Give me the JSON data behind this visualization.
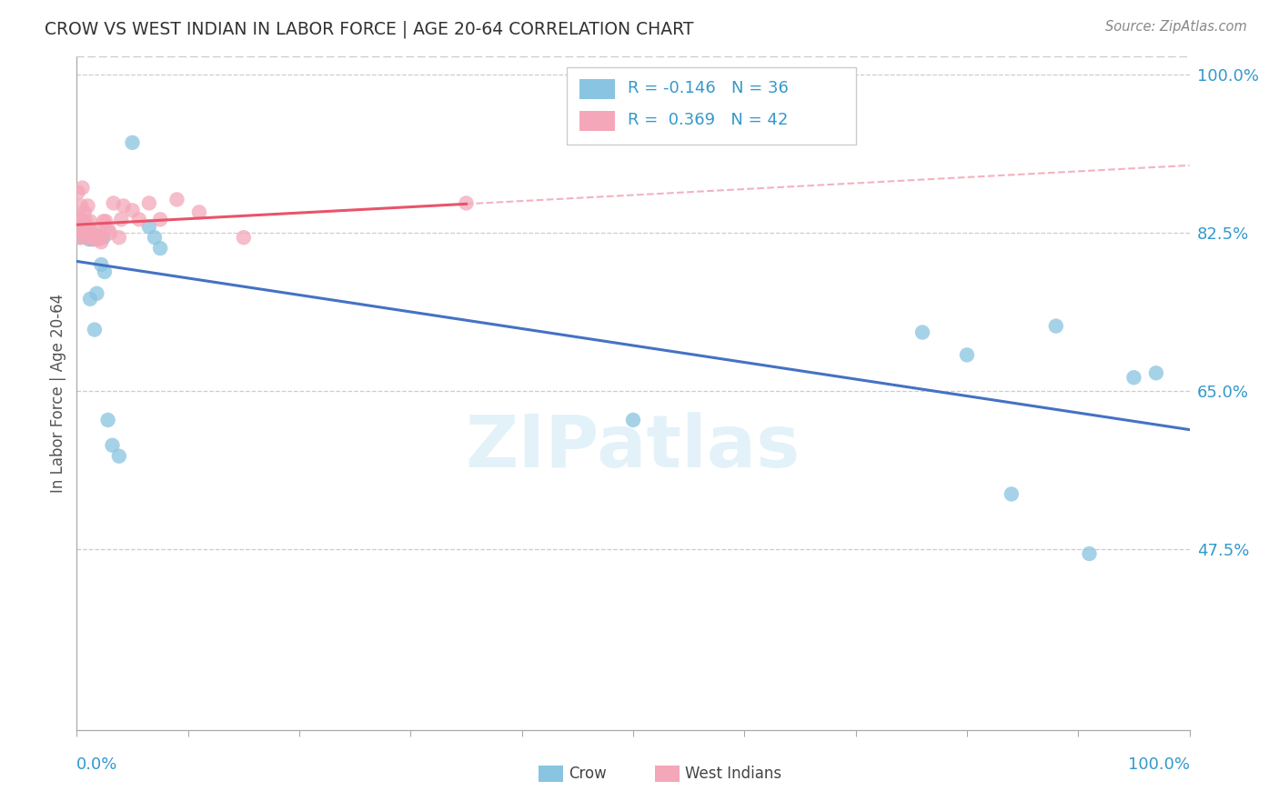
{
  "title": "CROW VS WEST INDIAN IN LABOR FORCE | AGE 20-64 CORRELATION CHART",
  "source": "Source: ZipAtlas.com",
  "ylabel": "In Labor Force | Age 20-64",
  "crow_R": -0.146,
  "crow_N": 36,
  "wi_R": 0.369,
  "wi_N": 42,
  "crow_color": "#89c4e1",
  "wi_color": "#f4a7b9",
  "crow_line_color": "#4472c4",
  "wi_line_color": "#e8546a",
  "wi_dash_color": "#f0a0b0",
  "watermark": "ZIPatlas",
  "crow_x": [
    0.003,
    0.004,
    0.005,
    0.006,
    0.007,
    0.008,
    0.009,
    0.01,
    0.011,
    0.012,
    0.013,
    0.014,
    0.015,
    0.016,
    0.017,
    0.018,
    0.019,
    0.02,
    0.022,
    0.024,
    0.025,
    0.028,
    0.032,
    0.038,
    0.05,
    0.065,
    0.07,
    0.075,
    0.5,
    0.76,
    0.8,
    0.84,
    0.88,
    0.91,
    0.95,
    0.97
  ],
  "crow_y": [
    0.82,
    0.825,
    0.825,
    0.832,
    0.828,
    0.822,
    0.825,
    0.828,
    0.818,
    0.752,
    0.82,
    0.818,
    0.82,
    0.718,
    0.82,
    0.758,
    0.82,
    0.822,
    0.79,
    0.82,
    0.782,
    0.618,
    0.59,
    0.578,
    0.925,
    0.832,
    0.82,
    0.808,
    0.618,
    0.715,
    0.69,
    0.536,
    0.722,
    0.47,
    0.665,
    0.67
  ],
  "wi_x": [
    0.001,
    0.002,
    0.003,
    0.004,
    0.004,
    0.005,
    0.005,
    0.006,
    0.007,
    0.007,
    0.008,
    0.008,
    0.009,
    0.01,
    0.01,
    0.011,
    0.012,
    0.013,
    0.014,
    0.015,
    0.016,
    0.017,
    0.018,
    0.02,
    0.021,
    0.022,
    0.024,
    0.026,
    0.028,
    0.03,
    0.033,
    0.038,
    0.04,
    0.042,
    0.05,
    0.056,
    0.065,
    0.075,
    0.09,
    0.11,
    0.15,
    0.35
  ],
  "wi_y": [
    0.87,
    0.828,
    0.82,
    0.855,
    0.84,
    0.838,
    0.875,
    0.825,
    0.832,
    0.848,
    0.82,
    0.838,
    0.832,
    0.825,
    0.855,
    0.83,
    0.838,
    0.82,
    0.825,
    0.82,
    0.818,
    0.82,
    0.825,
    0.818,
    0.82,
    0.815,
    0.838,
    0.838,
    0.83,
    0.825,
    0.858,
    0.82,
    0.84,
    0.855,
    0.85,
    0.84,
    0.858,
    0.84,
    0.862,
    0.848,
    0.82,
    0.858
  ],
  "xmin": 0.0,
  "xmax": 1.0,
  "ymin": 0.275,
  "ymax": 1.02,
  "ytick_vals": [
    0.475,
    0.65,
    0.825,
    1.0
  ],
  "ytick_labels": [
    "47.5%",
    "65.0%",
    "82.5%",
    "100.0%"
  ],
  "background_color": "#ffffff",
  "grid_color": "#cccccc",
  "tick_color": "#3399cc"
}
